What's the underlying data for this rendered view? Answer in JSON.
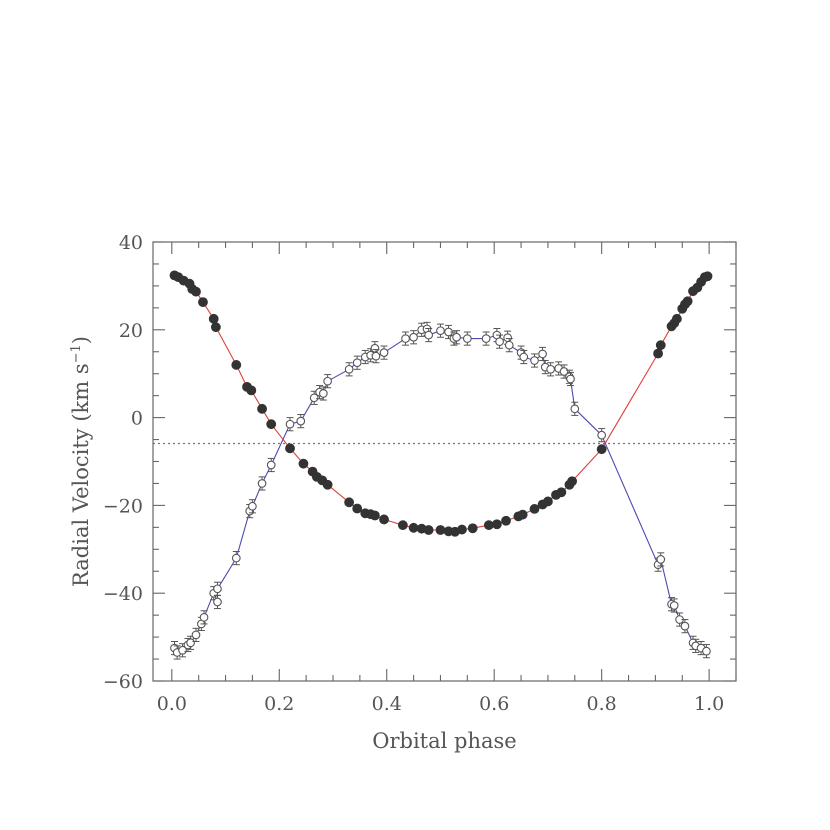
{
  "chart_data": {
    "type": "scatter",
    "xlabel": "Orbital phase",
    "ylabel_main": "Radial Velocity (km s",
    "ylabel_sup": "−1",
    "ylabel_tail": ")",
    "xlim": [
      -0.035,
      1.05
    ],
    "ylim": [
      -60,
      40
    ],
    "x_ticks": [
      0.0,
      0.2,
      0.4,
      0.6,
      0.8,
      1.0
    ],
    "x_tick_labels": [
      "0.0",
      "0.2",
      "0.4",
      "0.6",
      "0.8",
      "1.0"
    ],
    "y_ticks": [
      -60,
      -40,
      -20,
      0,
      20,
      40
    ],
    "y_tick_labels": [
      "−60",
      "−40",
      "−20",
      "0",
      "20",
      "40"
    ],
    "systemic_velocity": -5.9,
    "grid": false,
    "legend": "none",
    "series": [
      {
        "marker": "filled-circle",
        "color": "#333333",
        "curve_color": "#e0403a",
        "points": [
          [
            0.005,
            32.4
          ],
          [
            0.012,
            32.0
          ],
          [
            0.022,
            31.2
          ],
          [
            0.033,
            30.5
          ],
          [
            0.038,
            29.3
          ],
          [
            0.045,
            28.7
          ],
          [
            0.058,
            26.3
          ],
          [
            0.078,
            22.5
          ],
          [
            0.082,
            20.6
          ],
          [
            0.12,
            12.0
          ],
          [
            0.14,
            7.0
          ],
          [
            0.148,
            6.2
          ],
          [
            0.168,
            2.0
          ],
          [
            0.185,
            -1.5
          ],
          [
            0.22,
            -7.0
          ],
          [
            0.245,
            -10.5
          ],
          [
            0.262,
            -12.3
          ],
          [
            0.27,
            -13.5
          ],
          [
            0.28,
            -14.3
          ],
          [
            0.29,
            -15.3
          ],
          [
            0.33,
            -19.3
          ],
          [
            0.345,
            -20.7
          ],
          [
            0.36,
            -21.8
          ],
          [
            0.37,
            -22.0
          ],
          [
            0.378,
            -22.3
          ],
          [
            0.395,
            -23.2
          ],
          [
            0.43,
            -24.5
          ],
          [
            0.45,
            -25.1
          ],
          [
            0.465,
            -25.3
          ],
          [
            0.478,
            -25.6
          ],
          [
            0.5,
            -25.6
          ],
          [
            0.515,
            -25.9
          ],
          [
            0.527,
            -26.0
          ],
          [
            0.54,
            -25.5
          ],
          [
            0.56,
            -25.2
          ],
          [
            0.59,
            -24.5
          ],
          [
            0.605,
            -24.3
          ],
          [
            0.622,
            -23.5
          ],
          [
            0.645,
            -22.5
          ],
          [
            0.653,
            -22.1
          ],
          [
            0.675,
            -20.8
          ],
          [
            0.69,
            -19.8
          ],
          [
            0.7,
            -19.1
          ],
          [
            0.715,
            -17.6
          ],
          [
            0.725,
            -17.0
          ],
          [
            0.74,
            -15.3
          ],
          [
            0.745,
            -14.5
          ],
          [
            0.8,
            -7.2
          ],
          [
            0.905,
            14.6
          ],
          [
            0.91,
            16.5
          ],
          [
            0.93,
            20.8
          ],
          [
            0.935,
            21.5
          ],
          [
            0.94,
            22.5
          ],
          [
            0.95,
            24.8
          ],
          [
            0.955,
            25.8
          ],
          [
            0.96,
            26.5
          ],
          [
            0.97,
            28.8
          ],
          [
            0.978,
            29.6
          ],
          [
            0.985,
            30.9
          ],
          [
            0.992,
            32.0
          ],
          [
            0.997,
            32.2
          ]
        ]
      },
      {
        "marker": "open-circle-errorbar",
        "color": "#555555",
        "curve_color": "#4a4ab0",
        "error": 1.5,
        "points": [
          [
            0.005,
            -52.5
          ],
          [
            0.01,
            -53.5
          ],
          [
            0.02,
            -53.0
          ],
          [
            0.03,
            -51.8
          ],
          [
            0.035,
            -51.3
          ],
          [
            0.045,
            -49.5
          ],
          [
            0.055,
            -47.0
          ],
          [
            0.06,
            -45.5
          ],
          [
            0.078,
            -40.0
          ],
          [
            0.085,
            -42.0
          ],
          [
            0.085,
            -39.0
          ],
          [
            0.12,
            -32.0
          ],
          [
            0.145,
            -21.3
          ],
          [
            0.15,
            -20.2
          ],
          [
            0.168,
            -15.0
          ],
          [
            0.185,
            -10.8
          ],
          [
            0.22,
            -1.5
          ],
          [
            0.24,
            -0.8
          ],
          [
            0.265,
            4.5
          ],
          [
            0.275,
            5.8
          ],
          [
            0.282,
            5.5
          ],
          [
            0.29,
            8.3
          ],
          [
            0.33,
            11.0
          ],
          [
            0.345,
            12.5
          ],
          [
            0.36,
            13.8
          ],
          [
            0.37,
            14.2
          ],
          [
            0.378,
            15.8
          ],
          [
            0.38,
            14.0
          ],
          [
            0.395,
            14.8
          ],
          [
            0.435,
            18.0
          ],
          [
            0.45,
            18.3
          ],
          [
            0.465,
            20.0
          ],
          [
            0.475,
            20.2
          ],
          [
            0.478,
            18.8
          ],
          [
            0.5,
            19.8
          ],
          [
            0.515,
            19.5
          ],
          [
            0.525,
            18.0
          ],
          [
            0.53,
            18.3
          ],
          [
            0.55,
            18.0
          ],
          [
            0.585,
            18.0
          ],
          [
            0.605,
            18.8
          ],
          [
            0.61,
            17.3
          ],
          [
            0.625,
            18.2
          ],
          [
            0.628,
            16.5
          ],
          [
            0.65,
            14.8
          ],
          [
            0.655,
            13.8
          ],
          [
            0.675,
            13.0
          ],
          [
            0.69,
            14.5
          ],
          [
            0.695,
            11.5
          ],
          [
            0.705,
            11.0
          ],
          [
            0.72,
            11.2
          ],
          [
            0.73,
            10.5
          ],
          [
            0.74,
            9.3
          ],
          [
            0.742,
            8.8
          ],
          [
            0.75,
            2.0
          ],
          [
            0.8,
            -4.0
          ],
          [
            0.905,
            -33.5
          ],
          [
            0.91,
            -32.3
          ],
          [
            0.93,
            -42.5
          ],
          [
            0.935,
            -42.8
          ],
          [
            0.945,
            -46.0
          ],
          [
            0.955,
            -47.5
          ],
          [
            0.97,
            -51.3
          ],
          [
            0.975,
            -52.0
          ],
          [
            0.985,
            -52.5
          ],
          [
            0.995,
            -53.2
          ]
        ]
      }
    ]
  }
}
